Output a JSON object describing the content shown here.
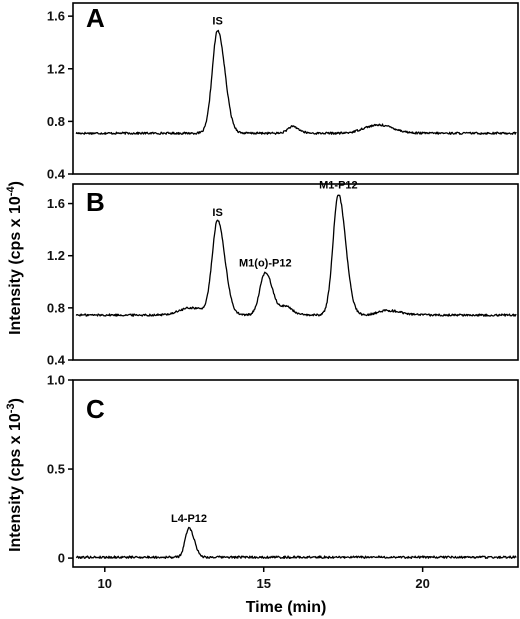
{
  "chart_data": [
    {
      "type": "line",
      "panel": "A",
      "xlim": [
        9,
        23
      ],
      "ylim": [
        0.4,
        1.7
      ],
      "yticks": [
        "0.4",
        "0.8",
        "1.2",
        "1.6"
      ],
      "xticks": [],
      "baseline": 0.71,
      "peaks": [
        {
          "label": "IS",
          "x": 13.55,
          "y": 1.49,
          "width": 0.17,
          "show_label": true
        },
        {
          "label": "",
          "x": 15.9,
          "y": 0.76,
          "width": 0.15,
          "show_label": false
        },
        {
          "label": "",
          "x": 18.3,
          "y": 0.75,
          "width": 0.3,
          "show_label": false
        },
        {
          "label": "",
          "x": 18.8,
          "y": 0.75,
          "width": 0.3,
          "show_label": false
        }
      ]
    },
    {
      "type": "line",
      "panel": "B",
      "xlim": [
        9,
        23
      ],
      "ylim": [
        0.4,
        1.75
      ],
      "yticks": [
        "0.4",
        "0.8",
        "1.2",
        "1.6"
      ],
      "xticks": [],
      "baseline": 0.745,
      "peaks": [
        {
          "label": "IS",
          "x": 13.55,
          "y": 1.46,
          "width": 0.17,
          "show_label": true
        },
        {
          "label": "",
          "x": 12.7,
          "y": 0.8,
          "width": 0.35,
          "show_label": false
        },
        {
          "label": "M1(o)-P12",
          "x": 15.05,
          "y": 1.07,
          "width": 0.17,
          "show_label": true
        },
        {
          "label": "",
          "x": 15.7,
          "y": 0.81,
          "width": 0.15,
          "show_label": false
        },
        {
          "label": "M1-P12",
          "x": 17.35,
          "y": 1.67,
          "width": 0.17,
          "show_label": true
        },
        {
          "label": "",
          "x": 18.9,
          "y": 0.78,
          "width": 0.3,
          "show_label": false
        }
      ]
    },
    {
      "type": "line",
      "panel": "C",
      "xlim": [
        9,
        23
      ],
      "ylim": [
        -0.05,
        1.0
      ],
      "yticks": [
        "0",
        "0.5",
        "1.0"
      ],
      "xticks": [
        "10",
        "15",
        "20"
      ],
      "xlabel": "Time (min)",
      "baseline": 0.005,
      "peaks": [
        {
          "label": "L4-P12",
          "x": 12.65,
          "y": 0.17,
          "width": 0.12,
          "show_label": true
        }
      ]
    }
  ],
  "ylabels": {
    "upper": "Intensity (cps x 10",
    "upper_exp": "-4",
    "lower": "Intensity (cps x 10",
    "lower_exp": "-3",
    "close": ")"
  }
}
